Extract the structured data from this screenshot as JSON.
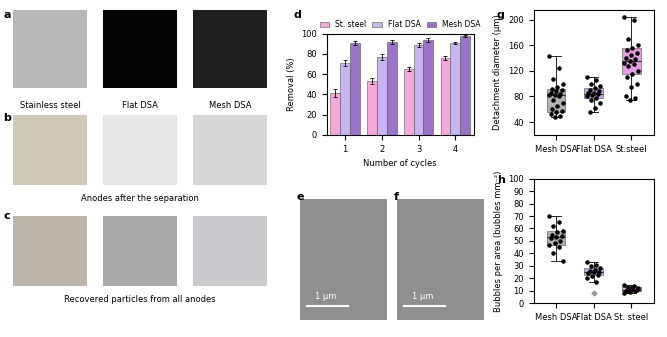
{
  "panels": [
    {
      "label": "a",
      "captions": [
        "Stainless steel",
        "Flat DSA",
        "Mesh DSA"
      ]
    },
    {
      "label": "b",
      "caption": "Anodes after the separation"
    },
    {
      "label": "c",
      "caption": "Recovered particles from all anodes"
    },
    {
      "label": "e",
      "scale": "1 μm"
    },
    {
      "label": "f",
      "scale": "1 μm"
    }
  ],
  "chart_data": [
    {
      "label": "d",
      "type": "bar",
      "categories": [
        "1",
        "2",
        "3",
        "4"
      ],
      "x_label": "Number of cycles",
      "y_label": "Removal (%)",
      "ylim": [
        0,
        100
      ],
      "yticks": [
        0,
        20,
        40,
        60,
        80,
        100
      ],
      "legend": "upper center",
      "series": [
        {
          "name": "St. steel",
          "color": "#f7a8d8",
          "values": [
            41,
            53,
            65,
            76
          ],
          "errors": [
            4,
            3,
            2,
            2
          ]
        },
        {
          "name": "Flat DSA",
          "color": "#c7b5ef",
          "values": [
            71,
            77,
            89,
            91
          ],
          "errors": [
            3,
            3,
            2,
            1
          ]
        },
        {
          "name": "Mesh DSA",
          "color": "#9b74c9",
          "values": [
            91,
            92,
            94,
            98
          ],
          "errors": [
            2,
            2,
            2,
            1
          ]
        }
      ]
    },
    {
      "label": "g",
      "type": "box",
      "categories": [
        "Mesh DSA",
        "Flat DSA",
        "St.steel"
      ],
      "y_label": "Detachment diameter (μm)",
      "ylim": [
        20,
        215
      ],
      "yticks": [
        40,
        80,
        120,
        160,
        200
      ],
      "series": [
        {
          "name": "Mesh DSA",
          "color": "#b3b3b3",
          "box": {
            "whislo": 48,
            "q1": 55,
            "med": 83,
            "q3": 92,
            "whishi": 143
          },
          "points": [
            143,
            125,
            108,
            100,
            95,
            92,
            90,
            88,
            86,
            84,
            83,
            82,
            80,
            75,
            70,
            65,
            60,
            58,
            55,
            52,
            50,
            48
          ]
        },
        {
          "name": "Flat DSA",
          "color": "#c9a9f0",
          "box": {
            "whislo": 55,
            "q1": 78,
            "med": 84,
            "q3": 93,
            "whishi": 110
          },
          "points": [
            110,
            105,
            100,
            97,
            93,
            90,
            88,
            86,
            85,
            84,
            83,
            80,
            78,
            75,
            70,
            62,
            55
          ]
        },
        {
          "name": "St.steel",
          "color": "#e79ce6",
          "box": {
            "whislo": 75,
            "q1": 115,
            "med": 135,
            "q3": 155,
            "whishi": 205
          },
          "points": [
            205,
            200,
            170,
            160,
            155,
            152,
            148,
            145,
            140,
            138,
            135,
            133,
            130,
            128,
            120,
            115,
            110,
            100,
            95,
            80,
            78,
            75
          ]
        }
      ]
    },
    {
      "label": "h",
      "type": "box",
      "categories": [
        "Mesh DSA",
        "Flat DSA",
        "St. steel"
      ],
      "y_label": "Bubbles per area (bubbles mm⁻²)",
      "ylim": [
        0,
        100
      ],
      "yticks": [
        0,
        10,
        20,
        30,
        40,
        50,
        60,
        70,
        80,
        90,
        100
      ],
      "series": [
        {
          "name": "Mesh DSA",
          "color": "#b3b3b3",
          "box": {
            "whislo": 34,
            "q1": 47,
            "med": 53,
            "q3": 58,
            "whishi": 70
          },
          "points": [
            70,
            65,
            62,
            58,
            57,
            55,
            54,
            53,
            52,
            50,
            48,
            47,
            45,
            40,
            34
          ]
        },
        {
          "name": "Flat DSA",
          "color": "#c9a9f0",
          "box": {
            "whislo": 17,
            "q1": 23,
            "med": 25,
            "q3": 28,
            "whishi": 33
          },
          "outliers": [
            8
          ],
          "points": [
            33,
            31,
            30,
            28,
            27,
            26,
            25,
            25,
            24,
            23,
            22,
            20,
            17
          ]
        },
        {
          "name": "St. steel",
          "color": "#e79ce6",
          "box": {
            "whislo": 8,
            "q1": 10,
            "med": 11,
            "q3": 13,
            "whishi": 15
          },
          "points": [
            15,
            14,
            13,
            12,
            12,
            11,
            11,
            11,
            10,
            10,
            9,
            8
          ]
        }
      ]
    }
  ]
}
